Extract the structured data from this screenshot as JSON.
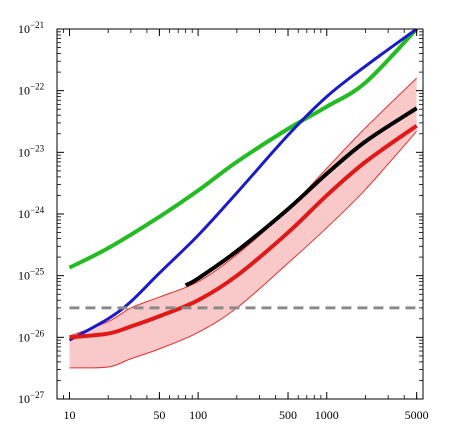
{
  "chart_data": {
    "type": "line",
    "title": "",
    "xlabel": "",
    "ylabel": "",
    "x_scale": "log",
    "y_scale": "log",
    "xlim": [
      8.0,
      5600
    ],
    "ylim": [
      1e-27,
      1e-21
    ],
    "grid": false,
    "legend": "none",
    "x_ticks": [
      {
        "value": 10,
        "label": "10"
      },
      {
        "value": 50,
        "label": "50"
      },
      {
        "value": 100,
        "label": "100"
      },
      {
        "value": 500,
        "label": "500"
      },
      {
        "value": 1000,
        "label": "1000"
      },
      {
        "value": 5000,
        "label": "5000"
      }
    ],
    "y_ticks": [
      {
        "value": 1e-27,
        "base": "10",
        "exp": "−27"
      },
      {
        "value": 1e-26,
        "base": "10",
        "exp": "−26"
      },
      {
        "value": 1e-25,
        "base": "10",
        "exp": "−25"
      },
      {
        "value": 1e-24,
        "base": "10",
        "exp": "−24"
      },
      {
        "value": 1e-23,
        "base": "10",
        "exp": "−23"
      },
      {
        "value": 1e-22,
        "base": "10",
        "exp": "−22"
      },
      {
        "value": 1e-21,
        "base": "10",
        "exp": "−21"
      }
    ],
    "band": {
      "color": "#f9c9c9",
      "edge_color": "#e83030",
      "upper": [
        [
          10,
          1.05e-26
        ],
        [
          20,
          1.8e-26
        ],
        [
          30,
          3e-26
        ],
        [
          50,
          4.5e-26
        ],
        [
          100,
          8e-26
        ],
        [
          200,
          2.2e-25
        ],
        [
          500,
          1.2e-24
        ],
        [
          1000,
          5.5e-24
        ],
        [
          2000,
          2.5e-23
        ],
        [
          5000,
          1.6e-22
        ]
      ],
      "lower": [
        [
          10,
          3.2e-27
        ],
        [
          20,
          3.3e-27
        ],
        [
          30,
          4.5e-27
        ],
        [
          50,
          6.5e-27
        ],
        [
          100,
          1.2e-26
        ],
        [
          200,
          3e-26
        ],
        [
          500,
          1.6e-25
        ],
        [
          1000,
          6e-25
        ],
        [
          2000,
          2.5e-24
        ],
        [
          5000,
          2.2e-23
        ]
      ]
    },
    "series": [
      {
        "color": "#22bb22",
        "width": 4,
        "dash": "",
        "points": [
          [
            10,
            1.35e-25
          ],
          [
            20,
            2.8e-25
          ],
          [
            50,
            9e-25
          ],
          [
            100,
            2.4e-24
          ],
          [
            200,
            7e-24
          ],
          [
            500,
            2.4e-23
          ],
          [
            1000,
            5.5e-23
          ],
          [
            2000,
            1.35e-22
          ],
          [
            5000,
            1e-21
          ]
        ]
      },
      {
        "color": "#1a1acc",
        "width": 3,
        "dash": "",
        "points": [
          [
            10,
            9e-27
          ],
          [
            20,
            2e-26
          ],
          [
            30,
            3.8e-26
          ],
          [
            50,
            1.1e-25
          ],
          [
            100,
            4.5e-25
          ],
          [
            200,
            2.2e-24
          ],
          [
            500,
            1.9e-23
          ],
          [
            1000,
            8e-23
          ],
          [
            2000,
            2.5e-22
          ],
          [
            5000,
            1e-21
          ]
        ]
      },
      {
        "color": "#e01818",
        "width": 4,
        "dash": "",
        "points": [
          [
            10,
            1e-26
          ],
          [
            20,
            1.15e-26
          ],
          [
            30,
            1.5e-26
          ],
          [
            50,
            2.2e-26
          ],
          [
            100,
            4e-26
          ],
          [
            200,
            1e-25
          ],
          [
            500,
            5e-25
          ],
          [
            1000,
            2e-24
          ],
          [
            2000,
            7e-24
          ],
          [
            5000,
            2.7e-23
          ]
        ]
      },
      {
        "color": "#000000",
        "width": 4,
        "dash": "",
        "points": [
          [
            80,
            7e-26
          ],
          [
            100,
            9e-26
          ],
          [
            200,
            2.5e-25
          ],
          [
            500,
            1.2e-24
          ],
          [
            1000,
            4.5e-24
          ],
          [
            2000,
            1.5e-23
          ],
          [
            5000,
            5.2e-23
          ]
        ]
      },
      {
        "color": "#8a8a8a",
        "width": 3,
        "dash": "10,6",
        "points": [
          [
            10,
            3e-26
          ],
          [
            5000,
            3e-26
          ]
        ]
      }
    ]
  }
}
